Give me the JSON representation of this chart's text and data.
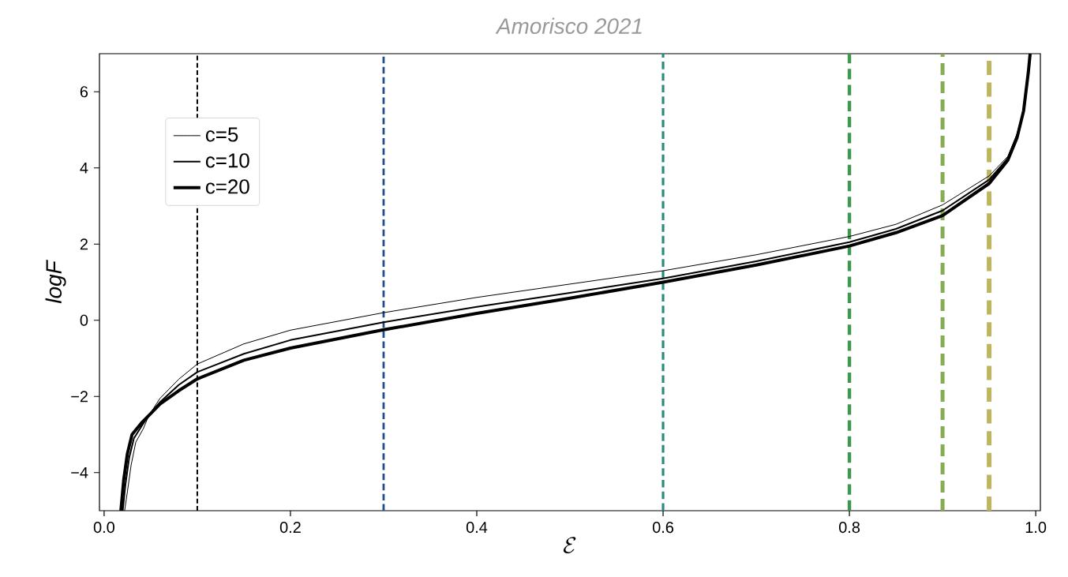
{
  "chart_data": {
    "type": "line",
    "title": "Amorisco 2021",
    "xlabel": "\\mathcal{E}",
    "ylabel": "logF",
    "xlim": [
      -0.005,
      1.005
    ],
    "ylim": [
      -5,
      7
    ],
    "xticks": [
      {
        "value": 0,
        "label": "0.0"
      },
      0.2,
      0.4,
      0.6,
      0.8,
      {
        "value": 1,
        "label": "1.0"
      }
    ],
    "yticks": [
      {
        "value": -4,
        "label": "−4"
      },
      {
        "value": -2,
        "label": "−2"
      },
      0,
      2,
      4,
      6
    ],
    "legend": "top left",
    "grid": false,
    "marker": "none",
    "line_style": "solid",
    "series": [
      {
        "name": "c=5",
        "color": "#000000",
        "x": [
          0.022,
          0.025,
          0.029,
          0.034,
          0.042,
          0.048,
          0.06,
          0.08,
          0.1,
          0.15,
          0.2,
          0.3,
          0.4,
          0.5,
          0.6,
          0.7,
          0.8,
          0.85,
          0.9,
          0.95,
          0.97,
          0.98,
          0.987,
          0.992,
          0.994
        ],
        "values": [
          -5,
          -4.5,
          -3.8,
          -3.2,
          -2.85,
          -2.5,
          -2.05,
          -1.55,
          -1.15,
          -0.62,
          -0.26,
          0.2,
          0.6,
          0.95,
          1.3,
          1.72,
          2.2,
          2.52,
          3.03,
          3.79,
          4.3,
          4.9,
          5.5,
          6.5,
          7
        ]
      },
      {
        "name": "c=10",
        "color": "#000000",
        "x": [
          0.02,
          0.023,
          0.027,
          0.032,
          0.041,
          0.048,
          0.06,
          0.08,
          0.1,
          0.15,
          0.2,
          0.3,
          0.4,
          0.5,
          0.6,
          0.7,
          0.8,
          0.85,
          0.9,
          0.95,
          0.97,
          0.98,
          0.987,
          0.992,
          0.994
        ],
        "values": [
          -5,
          -4.3,
          -3.6,
          -3.1,
          -2.75,
          -2.5,
          -2.15,
          -1.7,
          -1.36,
          -0.88,
          -0.52,
          -0.05,
          0.35,
          0.72,
          1.1,
          1.55,
          2.05,
          2.4,
          2.88,
          3.69,
          4.25,
          4.85,
          5.5,
          6.5,
          7
        ]
      },
      {
        "name": "c=20",
        "color": "#000000",
        "x": [
          0.018,
          0.021,
          0.025,
          0.03,
          0.04,
          0.048,
          0.06,
          0.08,
          0.1,
          0.15,
          0.2,
          0.3,
          0.4,
          0.5,
          0.6,
          0.7,
          0.8,
          0.85,
          0.9,
          0.95,
          0.97,
          0.98,
          0.987,
          0.992,
          0.994
        ],
        "values": [
          -5,
          -4.2,
          -3.5,
          -3.0,
          -2.7,
          -2.5,
          -2.2,
          -1.85,
          -1.54,
          -1.05,
          -0.73,
          -0.25,
          0.18,
          0.58,
          1.0,
          1.45,
          1.95,
          2.3,
          2.75,
          3.59,
          4.2,
          4.8,
          5.5,
          6.5,
          7
        ]
      }
    ],
    "ref_lines": [
      {
        "axis": "x",
        "value": 0.1,
        "color": "#000000",
        "line_style": "dashed"
      },
      {
        "axis": "x",
        "value": 0.3,
        "color": "#1f4e8c",
        "line_style": "dashed"
      },
      {
        "axis": "x",
        "value": 0.6,
        "color": "#2e8a7a",
        "line_style": "dashed"
      },
      {
        "axis": "x",
        "value": 0.8,
        "color": "#3f9650",
        "line_style": "dashed"
      },
      {
        "axis": "x",
        "value": 0.9,
        "color": "#86ad55",
        "line_style": "dashed"
      },
      {
        "axis": "x",
        "value": 0.95,
        "color": "#bdb65e",
        "line_style": "dashed"
      }
    ]
  }
}
